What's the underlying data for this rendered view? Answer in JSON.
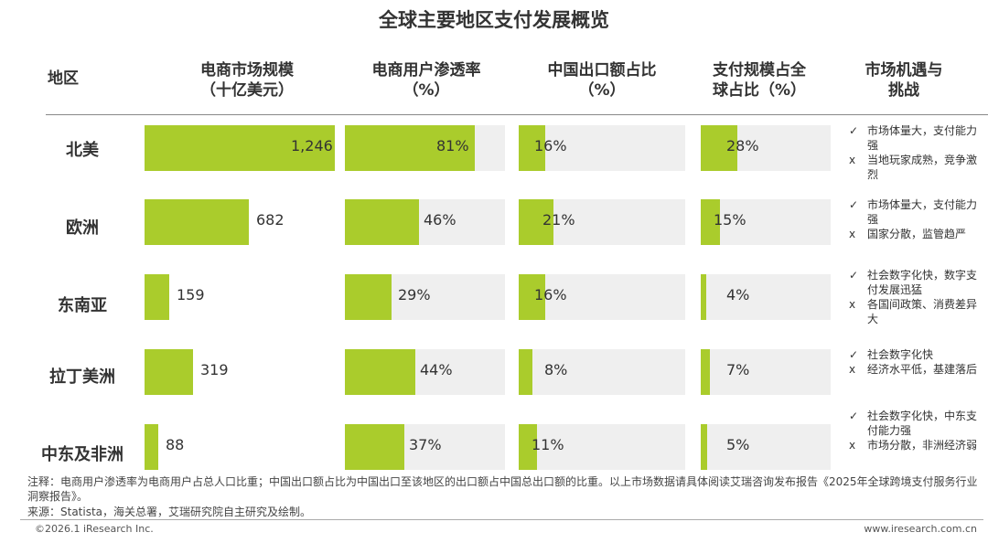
{
  "title": "全球主要地区支付发展概览",
  "headers": {
    "region": "地区",
    "col1_line1": "电商市场规模",
    "col1_line2": "（十亿美元）",
    "col2_line1": "电商用户渗透率",
    "col2_line2": "（%）",
    "col3_line1": "中国出口额占比",
    "col3_line2": "（%）",
    "col4_line1": "支付规模占全",
    "col4_line2": "球占比（%）",
    "col5_line1": "市场机遇与",
    "col5_line2": "挑战"
  },
  "chart_data": {
    "type": "bar",
    "categories": [
      "北美",
      "欧洲",
      "东南亚",
      "拉丁美洲",
      "中东及非洲"
    ],
    "series": [
      {
        "name": "电商市场规模（十亿美元）",
        "values": [
          1246,
          682,
          159,
          319,
          88
        ],
        "labels": [
          "1,246",
          "682",
          "159",
          "319",
          "88"
        ],
        "max": 1246
      },
      {
        "name": "电商用户渗透率（%）",
        "values": [
          81,
          46,
          29,
          44,
          37
        ],
        "labels": [
          "81%",
          "46%",
          "29%",
          "44%",
          "37%"
        ],
        "max": 100
      },
      {
        "name": "中国出口额占比（%）",
        "values": [
          16,
          21,
          16,
          8,
          11
        ],
        "labels": [
          "16%",
          "21%",
          "16%",
          "8%",
          "11%"
        ],
        "max": 100
      },
      {
        "name": "支付规模占全球占比（%）",
        "values": [
          28,
          15,
          4,
          7,
          5
        ],
        "labels": [
          "28%",
          "15%",
          "4%",
          "7%",
          "5%"
        ],
        "max": 100
      }
    ],
    "colors": {
      "bar": "#aacc2c",
      "track": "#efefef"
    }
  },
  "notes": [
    [
      {
        "mark": "✓",
        "text": "市场体量大，支付能力强"
      },
      {
        "mark": "x",
        "text": "当地玩家成熟，竞争激烈"
      }
    ],
    [
      {
        "mark": "✓",
        "text": "市场体量大，支付能力强"
      },
      {
        "mark": "x",
        "text": "国家分散，监管趋严"
      }
    ],
    [
      {
        "mark": "✓",
        "text": "社会数字化快，数字支付发展迅猛"
      },
      {
        "mark": "x",
        "text": "各国间政策、消费差异大"
      }
    ],
    [
      {
        "mark": "✓",
        "text": "社会数字化快"
      },
      {
        "mark": "x",
        "text": "经济水平低，基建落后"
      }
    ],
    [
      {
        "mark": "✓",
        "text": "社会数字化快，中东支付能力强"
      },
      {
        "mark": "x",
        "text": "市场分散，非洲经济弱"
      }
    ]
  ],
  "footnote": "注释：电商用户渗透率为电商用户占总人口比重；中国出口额占比为中国出口至该地区的出口额占中国总出口额的比重。以上市场数据请具体阅读艾瑞咨询发布报告《2025年全球跨境支付服务行业洞察报告》。",
  "source": "来源：Statista，海关总署，艾瑞研究院自主研究及绘制。",
  "copyright": "©2026.1 iResearch Inc.",
  "website": "www.iresearch.com.cn"
}
